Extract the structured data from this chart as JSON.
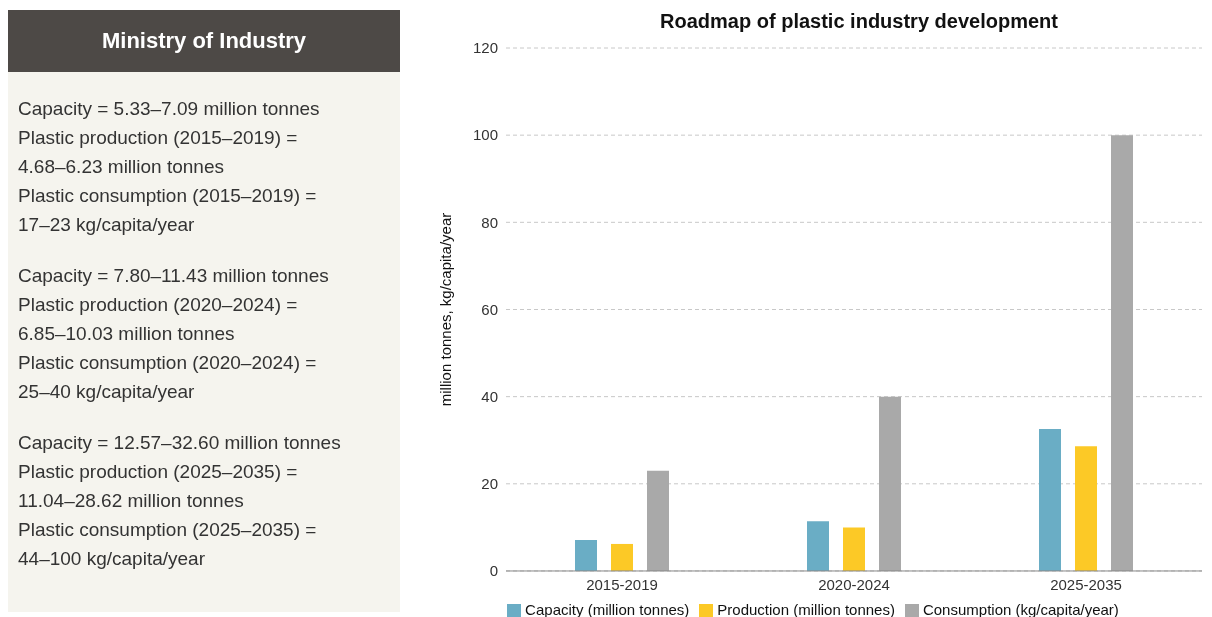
{
  "chart_data": [
    {
      "type": "other",
      "title": "Ministry of Industry",
      "annotations": [
        "Capacity = 5.33–7.09 million tonnes",
        "Plastic production (2015–2019) =\n4.68–6.23 million tonnes",
        "Plastic consumption (2015–2019) =\n17–23 kg/capita/year",
        "Capacity = 7.80–11.43 million tonnes",
        "Plastic production (2020–2024) =\n6.85–10.03 million tonnes",
        "Plastic consumption (2020–2024) =\n25–40 kg/capita/year",
        "Capacity = 12.57–32.60 million tonnes",
        "Plastic production (2025–2035) =\n11.04–28.62 million tonnes",
        "Plastic consumption (2025–2035) =\n44–100 kg/capita/year"
      ]
    },
    {
      "type": "bar",
      "title": "Roadmap of plastic industry development",
      "ylabel": "million tonnes, kg/capita/year",
      "categories": [
        "2015-2019",
        "2020-2024",
        "2025-2035"
      ],
      "series": [
        {
          "name": "Capacity (million tonnes)",
          "color": "#6aadc5",
          "values": [
            7.1,
            11.4,
            32.6
          ]
        },
        {
          "name": "Production (million tonnes)",
          "color": "#fcc926",
          "values": [
            6.2,
            10.0,
            28.6
          ]
        },
        {
          "name": "Consumption (kg/capita/year)",
          "color": "#a9a9a9",
          "values": [
            23,
            40,
            100
          ]
        }
      ],
      "ylim": [
        0,
        120
      ],
      "yticks": [
        0,
        20,
        40,
        60,
        80,
        100,
        120
      ],
      "grid": "y",
      "legend": "bottom"
    }
  ]
}
